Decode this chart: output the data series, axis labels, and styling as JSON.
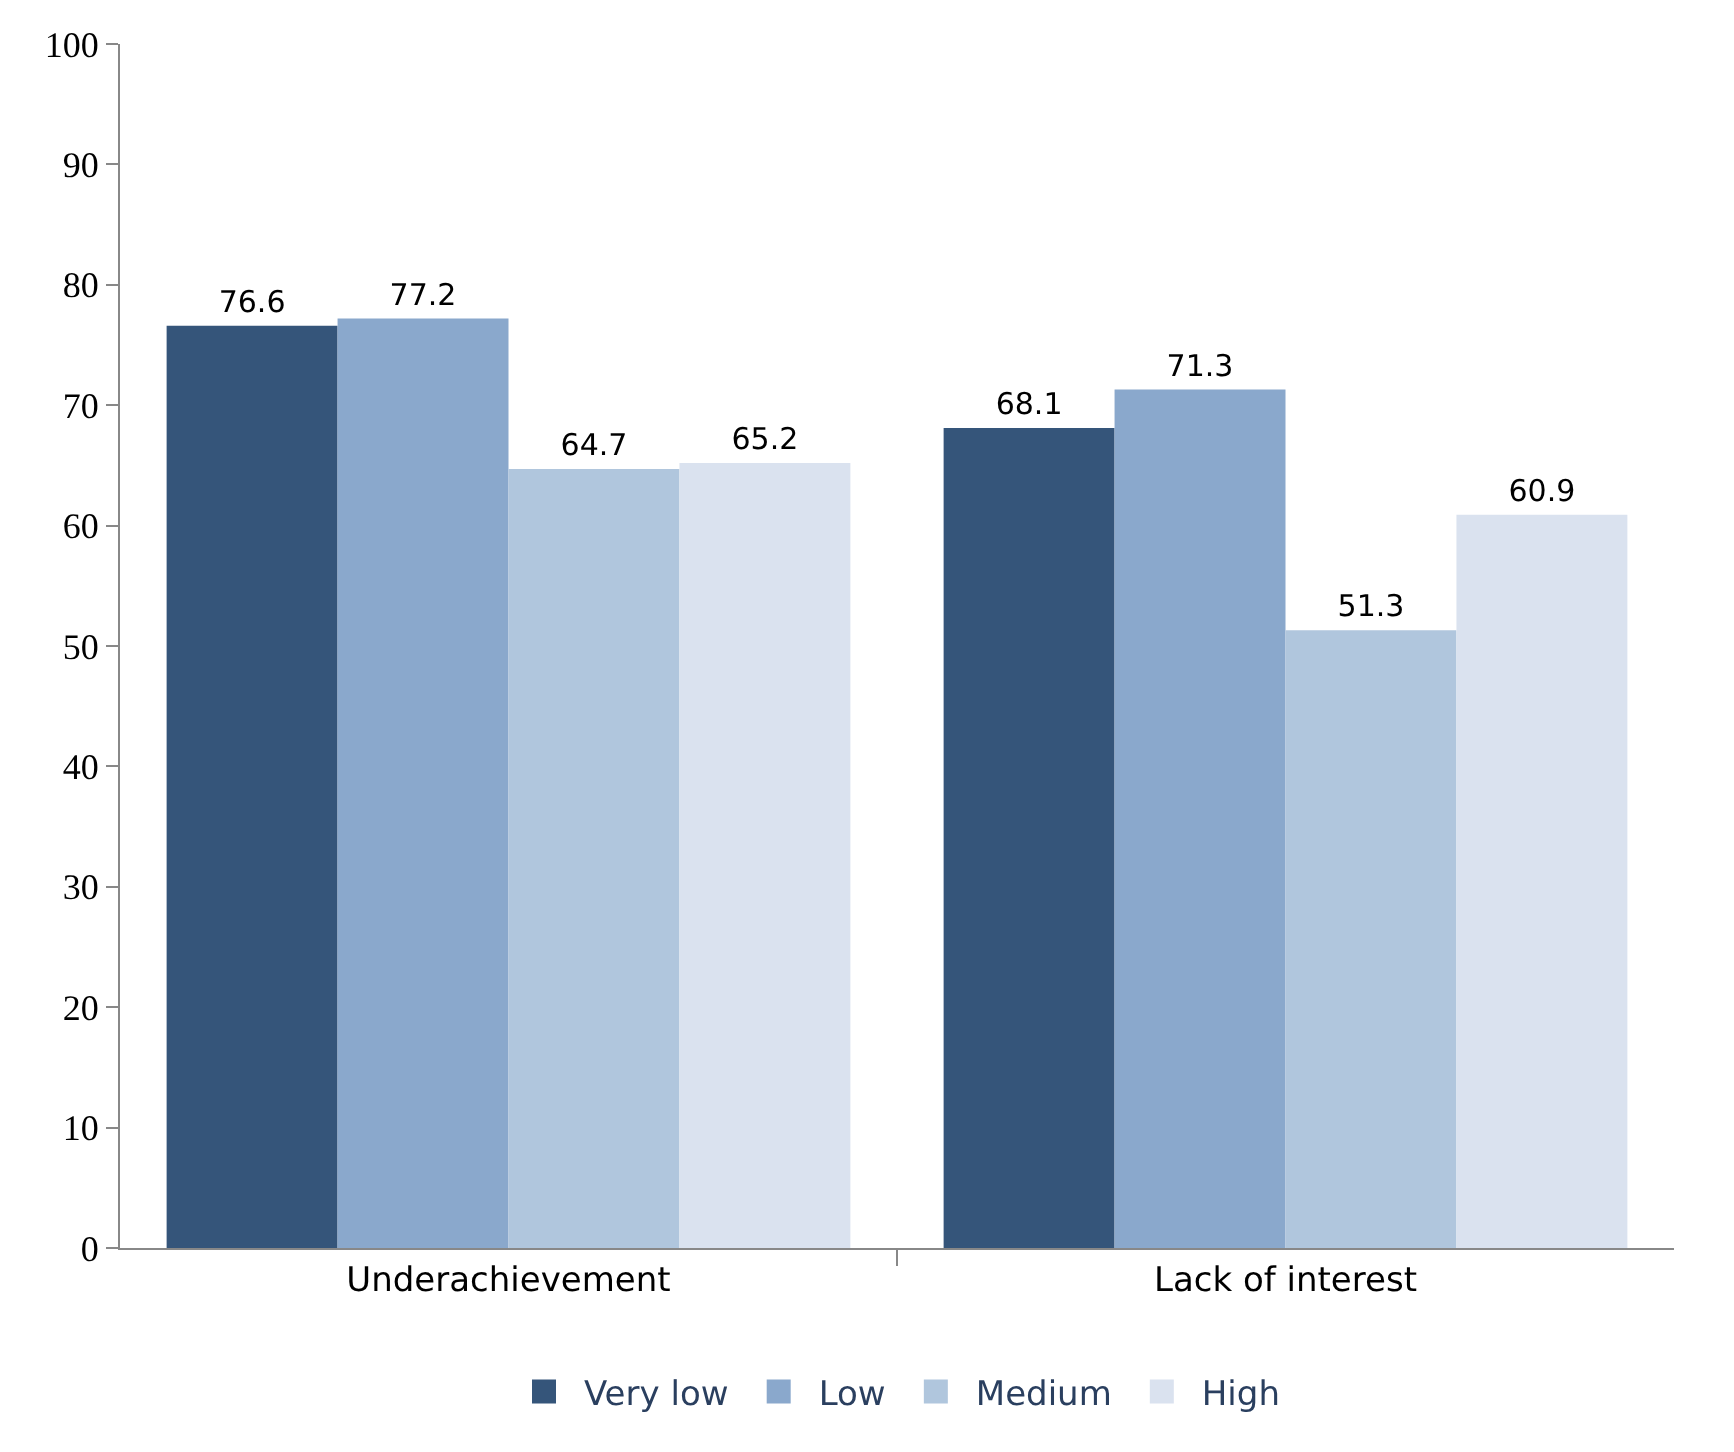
{
  "chart_data": {
    "type": "bar",
    "categories": [
      "Underachievement",
      "Lack of interest"
    ],
    "series": [
      {
        "name": "Very low",
        "color": "#35557a",
        "values": [
          76.6,
          68.1
        ]
      },
      {
        "name": "Low",
        "color": "#8aa8cc",
        "values": [
          77.2,
          71.3
        ]
      },
      {
        "name": "Medium",
        "color": "#b0c6dd",
        "values": [
          64.7,
          51.3
        ]
      },
      {
        "name": "High",
        "color": "#dae2ef",
        "values": [
          65.2,
          60.9
        ]
      }
    ],
    "ylim": [
      0,
      100
    ],
    "yticks": [
      0,
      10,
      20,
      30,
      40,
      50,
      60,
      70,
      80,
      90,
      100
    ],
    "data_labels": true,
    "legend": "bottom"
  }
}
